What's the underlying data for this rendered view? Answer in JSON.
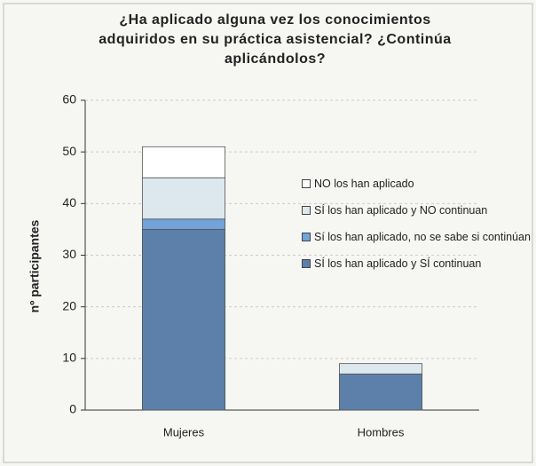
{
  "chart_data": {
    "type": "stacked_bar",
    "title": "¿Ha aplicado alguna vez los conocimientos adquiridos en su práctica asistencial? ¿Continúa aplicándolos?",
    "y_label": "nº participantes",
    "categories": [
      "Mujeres",
      "Hombres"
    ],
    "series": [
      {
        "name": "SÍ los han aplicado y SÍ continuan",
        "color": "#5d80aa",
        "values": [
          35,
          7
        ]
      },
      {
        "name": "Sí los han aplicado, no se sabe si continúan",
        "color": "#72a3d9",
        "values": [
          2,
          0
        ]
      },
      {
        "name": "SÍ los han aplicado y NO continuan",
        "color": "#dde7ee",
        "values": [
          8,
          2
        ]
      },
      {
        "name": "NO los han aplicado",
        "color": "#ffffff",
        "values": [
          6,
          0
        ]
      }
    ],
    "ylim": [
      0,
      60
    ],
    "yticks": [
      0,
      10,
      20,
      30,
      40,
      50,
      60
    ],
    "grid": true
  }
}
